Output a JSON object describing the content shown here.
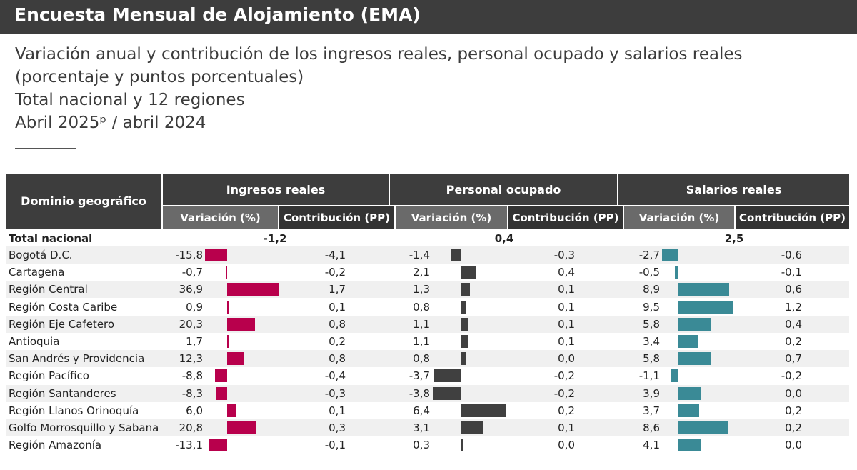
{
  "banner_title": "Encuesta Mensual de Alojamiento (EMA)",
  "subtitle": {
    "line1": "Variación anual y contribución de los ingresos reales, personal ocupado y salarios reales",
    "line2": "(porcentaje y puntos porcentuales)",
    "line3": "Total nacional y 12 regiones",
    "line4": "Abril 2025ᵖ / abril 2024"
  },
  "table_headers": {
    "domain": "Dominio geográfico",
    "groups": [
      "Ingresos reales",
      "Personal ocupado",
      "Salarios reales"
    ],
    "variation": "Variación (%)",
    "contribution": "Contribución (PP)"
  },
  "colors": {
    "ingresos": "#b8004c",
    "personal": "#404040",
    "salarios": "#3a8a96",
    "header": "#3d3d3d"
  },
  "chart_data": {
    "type": "table",
    "total": {
      "label": "Total nacional",
      "ingresos": "-1,2",
      "personal": "0,4",
      "salarios": "2,5"
    },
    "rows": [
      {
        "label": "Bogotá D.C.",
        "ing_var": -15.8,
        "ing_var_t": "-15,8",
        "ing_con": "-4,1",
        "per_var": -1.4,
        "per_var_t": "-1,4",
        "per_con": "-0,3",
        "sal_var": -2.7,
        "sal_var_t": "-2,7",
        "sal_con": "-0,6"
      },
      {
        "label": "Cartagena",
        "ing_var": -0.7,
        "ing_var_t": "-0,7",
        "ing_con": "-0,2",
        "per_var": 2.1,
        "per_var_t": "2,1",
        "per_con": "0,4",
        "sal_var": -0.5,
        "sal_var_t": "-0,5",
        "sal_con": "-0,1"
      },
      {
        "label": "Región Central",
        "ing_var": 36.9,
        "ing_var_t": "36,9",
        "ing_con": "1,7",
        "per_var": 1.3,
        "per_var_t": "1,3",
        "per_con": "0,1",
        "sal_var": 8.9,
        "sal_var_t": "8,9",
        "sal_con": "0,6"
      },
      {
        "label": "Región Costa Caribe",
        "ing_var": 0.9,
        "ing_var_t": "0,9",
        "ing_con": "0,1",
        "per_var": 0.8,
        "per_var_t": "0,8",
        "per_con": "0,1",
        "sal_var": 9.5,
        "sal_var_t": "9,5",
        "sal_con": "1,2"
      },
      {
        "label": "Región Eje Cafetero",
        "ing_var": 20.3,
        "ing_var_t": "20,3",
        "ing_con": "0,8",
        "per_var": 1.1,
        "per_var_t": "1,1",
        "per_con": "0,1",
        "sal_var": 5.8,
        "sal_var_t": "5,8",
        "sal_con": "0,4"
      },
      {
        "label": "Antioquia",
        "ing_var": 1.7,
        "ing_var_t": "1,7",
        "ing_con": "0,2",
        "per_var": 1.1,
        "per_var_t": "1,1",
        "per_con": "0,1",
        "sal_var": 3.4,
        "sal_var_t": "3,4",
        "sal_con": "0,2"
      },
      {
        "label": "San Andrés y Providencia",
        "ing_var": 12.3,
        "ing_var_t": "12,3",
        "ing_con": "0,8",
        "per_var": 0.8,
        "per_var_t": "0,8",
        "per_con": "0,0",
        "sal_var": 5.8,
        "sal_var_t": "5,8",
        "sal_con": "0,7"
      },
      {
        "label": "Región Pacífico",
        "ing_var": -8.8,
        "ing_var_t": "-8,8",
        "ing_con": "-0,4",
        "per_var": -3.7,
        "per_var_t": "-3,7",
        "per_con": "-0,2",
        "sal_var": -1.1,
        "sal_var_t": "-1,1",
        "sal_con": "-0,2"
      },
      {
        "label": "Región Santanderes",
        "ing_var": -8.3,
        "ing_var_t": "-8,3",
        "ing_con": "-0,3",
        "per_var": -3.8,
        "per_var_t": "-3,8",
        "per_con": "-0,2",
        "sal_var": 3.9,
        "sal_var_t": "3,9",
        "sal_con": "0,0"
      },
      {
        "label": "Región Llanos Orinoquía",
        "ing_var": 6.0,
        "ing_var_t": "6,0",
        "ing_con": "0,1",
        "per_var": 6.4,
        "per_var_t": "6,4",
        "per_con": "0,2",
        "sal_var": 3.7,
        "sal_var_t": "3,7",
        "sal_con": "0,2"
      },
      {
        "label": "Golfo Morrosquillo y Sabana",
        "ing_var": 20.8,
        "ing_var_t": "20,8",
        "ing_con": "0,3",
        "per_var": 3.1,
        "per_var_t": "3,1",
        "per_con": "0,1",
        "sal_var": 8.6,
        "sal_var_t": "8,6",
        "sal_con": "0,2"
      },
      {
        "label": "Región Amazonía",
        "ing_var": -13.1,
        "ing_var_t": "-13,1",
        "ing_con": "-0,1",
        "per_var": 0.3,
        "per_var_t": "0,3",
        "per_con": "0,0",
        "sal_var": 4.1,
        "sal_var_t": "4,1",
        "sal_con": "0,0"
      }
    ]
  }
}
